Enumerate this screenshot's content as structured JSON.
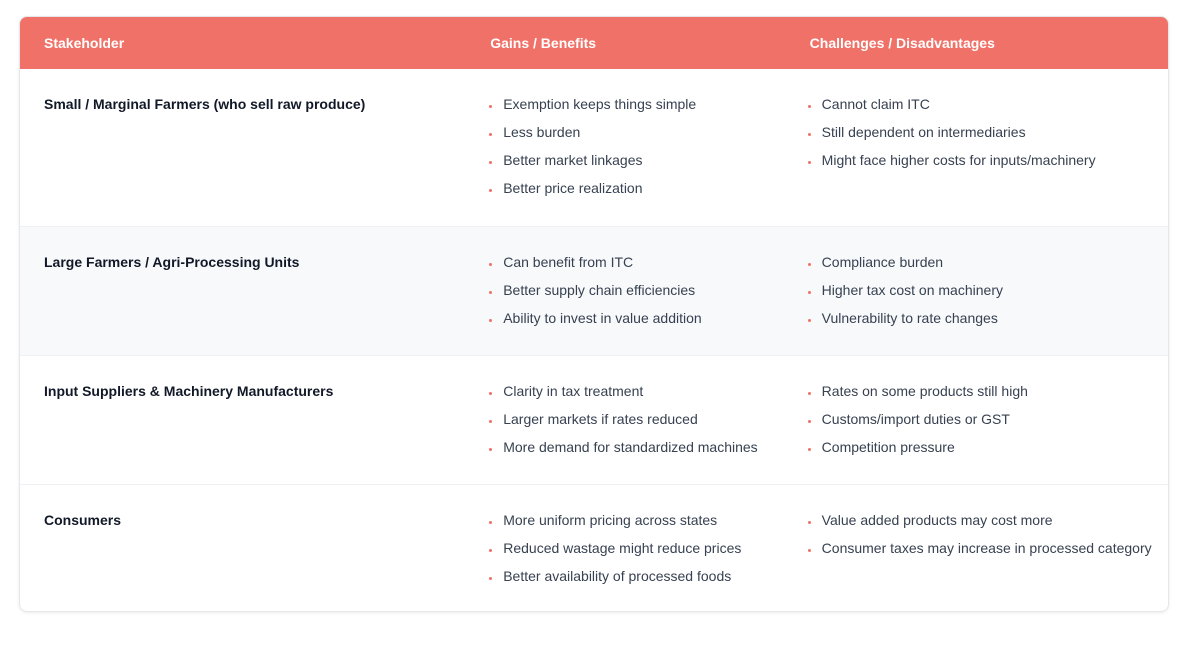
{
  "header": {
    "stakeholder": "Stakeholder",
    "gains": "Gains / Benefits",
    "challenges": "Challenges / Disadvantages"
  },
  "rows": [
    {
      "stakeholder": "Small / Marginal Farmers (who sell raw produce)",
      "gains": [
        "Exemption keeps things simple",
        "Less burden",
        "Better market linkages",
        "Better price realization"
      ],
      "challenges": [
        "Cannot claim ITC",
        "Still dependent on intermediaries",
        "Might face higher costs for inputs/machinery"
      ]
    },
    {
      "stakeholder": "Large Farmers / Agri-Processing Units",
      "gains": [
        "Can benefit from ITC",
        "Better supply chain efficiencies",
        "Ability to invest in value addition"
      ],
      "challenges": [
        "Compliance burden",
        "Higher tax cost on machinery",
        "Vulnerability to rate changes"
      ]
    },
    {
      "stakeholder": "Input Suppliers & Machinery Manufacturers",
      "gains": [
        "Clarity in tax treatment",
        "Larger markets if rates reduced",
        "More demand for standardized machines"
      ],
      "challenges": [
        "Rates on some products still high",
        "Customs/import duties or GST",
        "Competition pressure"
      ]
    },
    {
      "stakeholder": "Consumers",
      "gains": [
        "More uniform pricing across states",
        "Reduced wastage might reduce prices",
        "Better availability of processed foods"
      ],
      "challenges": [
        "Value added products may cost more",
        "Consumer taxes may increase in processed category"
      ]
    }
  ],
  "colors": {
    "header_bg": "#f07167",
    "bullet": "#f07167",
    "alt_row_bg": "#f8f9fb"
  }
}
